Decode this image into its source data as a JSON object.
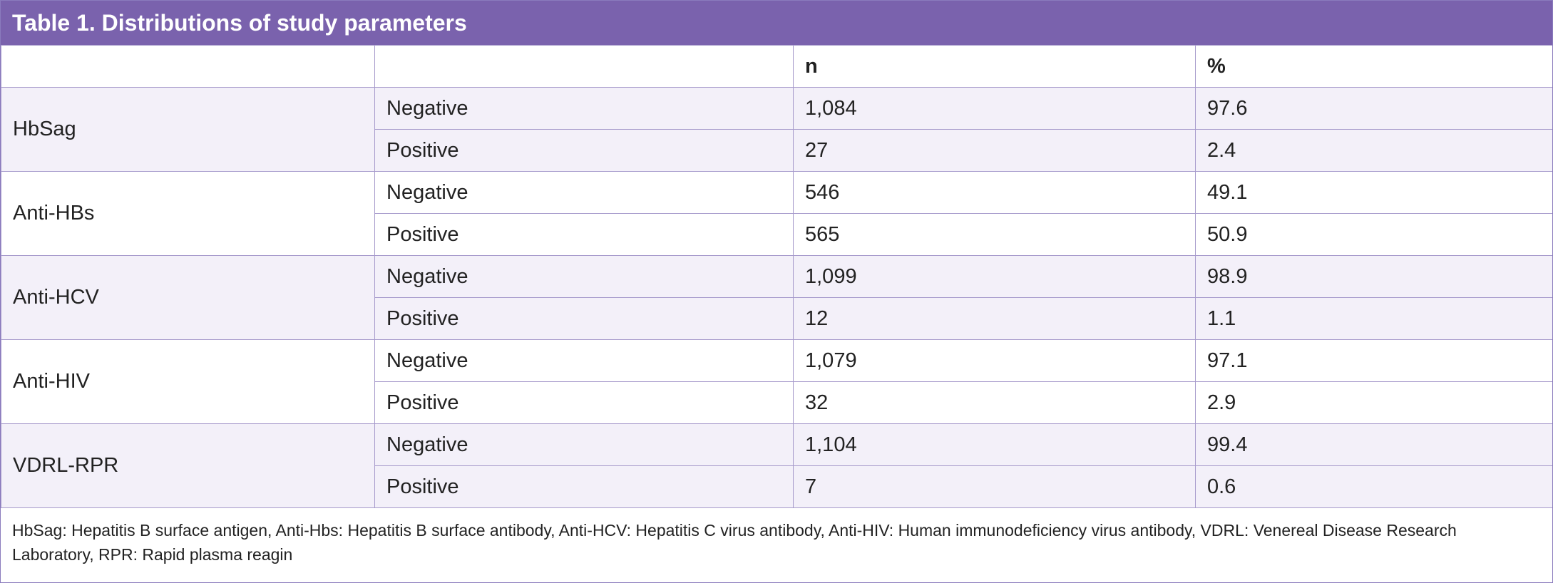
{
  "title": "Table 1. Distributions of study parameters",
  "table": {
    "columns": [
      "n",
      "%"
    ],
    "groups": [
      {
        "label": "HbSag",
        "rows": [
          [
            "Negative",
            "1,084",
            "97.6"
          ],
          [
            "Positive",
            "27",
            "2.4"
          ]
        ]
      },
      {
        "label": "Anti-HBs",
        "rows": [
          [
            "Negative",
            "546",
            "49.1"
          ],
          [
            "Positive",
            "565",
            "50.9"
          ]
        ]
      },
      {
        "label": "Anti-HCV",
        "rows": [
          [
            "Negative",
            "1,099",
            "98.9"
          ],
          [
            "Positive",
            "12",
            "1.1"
          ]
        ]
      },
      {
        "label": "Anti-HIV",
        "rows": [
          [
            "Negative",
            "1,079",
            "97.1"
          ],
          [
            "Positive",
            "32",
            "2.9"
          ]
        ]
      },
      {
        "label": "VDRL-RPR",
        "rows": [
          [
            "Negative",
            "1,104",
            "99.4"
          ],
          [
            "Positive",
            "7",
            "0.6"
          ]
        ]
      }
    ]
  },
  "footnote": "HbSag: Hepatitis B surface antigen, Anti-Hbs: Hepatitis B surface antibody, Anti-HCV: Hepatitis C virus antibody, Anti-HIV: Human immunodeficiency virus antibody, VDRL: Venereal Disease Research Laboratory, RPR: Rapid plasma reagin"
}
